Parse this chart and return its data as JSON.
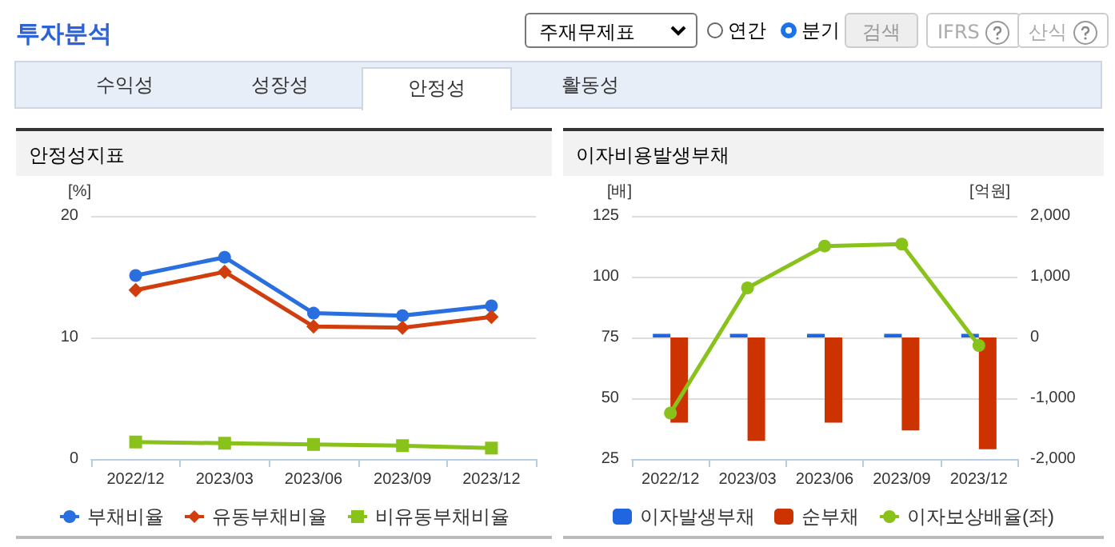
{
  "chart_data": [
    {
      "type": "other",
      "title": "투자분석",
      "annotations": [
        "주재무제표",
        "연간",
        "분기",
        "검색",
        "IFRS",
        "산식",
        "수익성",
        "성장성",
        "안정성",
        "활동성"
      ]
    },
    {
      "type": "line",
      "title": "안정성지표",
      "ylabel": "[%]",
      "categories": [
        "2022/12",
        "2023/03",
        "2023/06",
        "2023/09",
        "2023/12"
      ],
      "ylim": [
        0,
        20
      ],
      "yticks": [
        0,
        10,
        20
      ],
      "grid": "y",
      "legend": "bottom",
      "series": [
        {
          "name": "부채비율",
          "color": "#2a6fe0",
          "marker": "circle",
          "values": [
            15.1,
            16.6,
            12.0,
            11.8,
            12.6
          ]
        },
        {
          "name": "유동부채비율",
          "color": "#d13d0c",
          "marker": "diamond",
          "values": [
            13.9,
            15.4,
            10.9,
            10.8,
            11.7
          ]
        },
        {
          "name": "비유동부채비율",
          "color": "#88c21a",
          "marker": "square",
          "values": [
            1.4,
            1.3,
            1.2,
            1.1,
            0.9
          ]
        }
      ]
    },
    {
      "type": "bar",
      "title": "이자비용발생부채",
      "ylabel": "[배]",
      "y2label": "[억원]",
      "categories": [
        "2022/12",
        "2023/03",
        "2023/06",
        "2023/09",
        "2023/12"
      ],
      "ylim": [
        25,
        125
      ],
      "yticks": [
        25,
        50,
        75,
        100,
        125
      ],
      "y2lim": [
        -2000,
        2000
      ],
      "y2ticks": [
        {
          "value": -2000,
          "label": "-2,000"
        },
        {
          "value": -1000,
          "label": "-1,000"
        },
        0,
        {
          "value": 1000,
          "label": "1,000"
        },
        {
          "value": 2000,
          "label": "2,000"
        }
      ],
      "grid": "y",
      "legend": "bottom",
      "series": [
        {
          "name": "이자발생부채",
          "color": "#1f66e0",
          "axis": "y2",
          "values": [
            60,
            60,
            60,
            60,
            60
          ]
        },
        {
          "name": "순부채",
          "color": "#cc3300",
          "axis": "y2",
          "values": [
            -1400,
            -1700,
            -1400,
            -1530,
            -1840
          ]
        },
        {
          "name": "이자보상배율(좌)",
          "type": "line",
          "color": "#88c21a",
          "marker": "circle",
          "values": [
            43.9,
            95.4,
            112.6,
            113.4,
            71.7
          ]
        }
      ]
    }
  ]
}
